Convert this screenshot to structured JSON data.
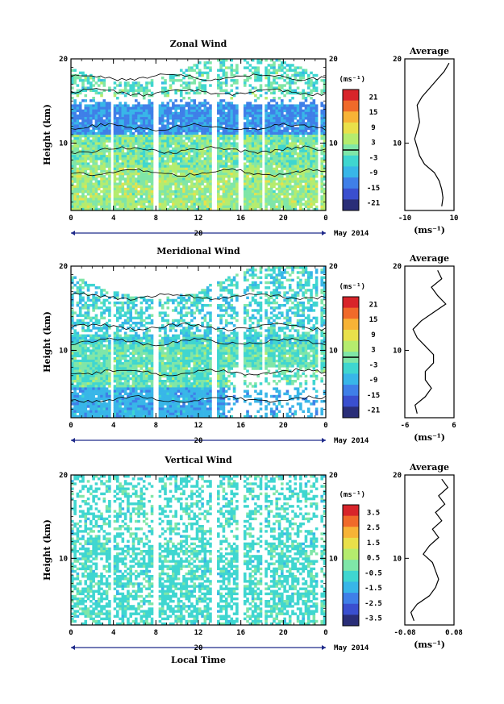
{
  "colors": {
    "colormap": [
      "#2a2e78",
      "#3a4fcf",
      "#3f7fe8",
      "#38b6e8",
      "#3fd6d0",
      "#7fe6a8",
      "#b5ec6e",
      "#e9e04a",
      "#f7b336",
      "#f06a2a",
      "#d8242a"
    ],
    "contour": "#000000",
    "axis": "#000000",
    "date_bar": "#1f2a8a"
  },
  "xlabel": "Local Time",
  "date_label": "May 2014",
  "day_label": "20",
  "chart_data": [
    {
      "type": "heatmap",
      "title": "Zonal Wind",
      "ylabel": "Height (km)",
      "x_ticks": [
        "0",
        "4",
        "8",
        "12",
        "16",
        "20",
        "0"
      ],
      "y_ticks": [
        "20",
        "10"
      ],
      "xlim": [
        0,
        24
      ],
      "ylim": [
        2,
        20
      ],
      "colorbar": {
        "unit": "(ms⁻¹)",
        "ticks": [
          "21",
          "15",
          "9",
          "3",
          "-3",
          "-9",
          "-15",
          "-21"
        ],
        "range": [
          -24,
          24
        ]
      },
      "profile": {
        "title": "Average",
        "xlabel": "(ms⁻¹)",
        "x_ticks": [
          "-10",
          "10"
        ],
        "y_ticks": [
          "20",
          "10"
        ],
        "xlim": [
          -10,
          10
        ],
        "heights": [
          2.5,
          3.5,
          4.5,
          5.5,
          6.5,
          7.5,
          8.5,
          9.5,
          10.5,
          11.5,
          12.5,
          13.5,
          14.5,
          15.5,
          16.5,
          17.5,
          18.5,
          19.5
        ],
        "values": [
          5,
          5.5,
          5,
          4,
          2,
          -2,
          -4,
          -5,
          -6,
          -5,
          -4,
          -4.5,
          -5,
          -3,
          0,
          3,
          6,
          8
        ]
      }
    },
    {
      "type": "heatmap",
      "title": "Meridional Wind",
      "ylabel": "Height (km)",
      "x_ticks": [
        "0",
        "4",
        "8",
        "12",
        "16",
        "20",
        "0"
      ],
      "y_ticks": [
        "20",
        "10"
      ],
      "xlim": [
        0,
        24
      ],
      "ylim": [
        2,
        20
      ],
      "colorbar": {
        "unit": "(ms⁻¹)",
        "ticks": [
          "21",
          "15",
          "9",
          "3",
          "-3",
          "-9",
          "-15",
          "-21"
        ],
        "range": [
          -24,
          24
        ]
      },
      "profile": {
        "title": "Average",
        "xlabel": "(ms⁻¹)",
        "x_ticks": [
          "-6",
          "6"
        ],
        "y_ticks": [
          "20",
          "10"
        ],
        "xlim": [
          -6,
          6
        ],
        "heights": [
          2.5,
          3.5,
          4.5,
          5.5,
          6.5,
          7.5,
          8.5,
          9.5,
          10.5,
          11.5,
          12.5,
          13.5,
          14.5,
          15.5,
          16.5,
          17.5,
          18.5,
          19.5
        ],
        "values": [
          -3,
          -3.5,
          -1,
          0.5,
          -1,
          -1,
          1,
          1,
          -1,
          -3,
          -4,
          -2,
          1,
          4,
          2,
          0.5,
          3,
          2
        ]
      }
    },
    {
      "type": "heatmap",
      "title": "Vertical Wind",
      "ylabel": "Height (km)",
      "x_ticks": [
        "0",
        "4",
        "8",
        "12",
        "16",
        "20",
        "0"
      ],
      "y_ticks": [
        "20",
        "10"
      ],
      "xlim": [
        0,
        24
      ],
      "ylim": [
        2,
        20
      ],
      "colorbar": {
        "unit": "(ms⁻¹)",
        "ticks": [
          "3.5",
          "2.5",
          "1.5",
          "0.5",
          "-0.5",
          "-1.5",
          "-2.5",
          "-3.5"
        ],
        "range": [
          -4,
          4
        ]
      },
      "profile": {
        "title": "Average",
        "xlabel": "(ms⁻¹)",
        "x_ticks": [
          "-0.08",
          "0.08"
        ],
        "y_ticks": [
          "20",
          "10"
        ],
        "xlim": [
          -0.08,
          0.08
        ],
        "heights": [
          2.5,
          3.5,
          4.5,
          5.5,
          6.5,
          7.5,
          8.5,
          9.5,
          10.5,
          11.5,
          12.5,
          13.5,
          14.5,
          15.5,
          16.5,
          17.5,
          18.5,
          19.5
        ],
        "values": [
          -0.05,
          -0.06,
          -0.04,
          0.0,
          0.02,
          0.03,
          0.02,
          0.01,
          -0.02,
          0.0,
          0.03,
          0.01,
          0.04,
          0.02,
          0.05,
          0.03,
          0.06,
          0.04
        ]
      }
    }
  ]
}
